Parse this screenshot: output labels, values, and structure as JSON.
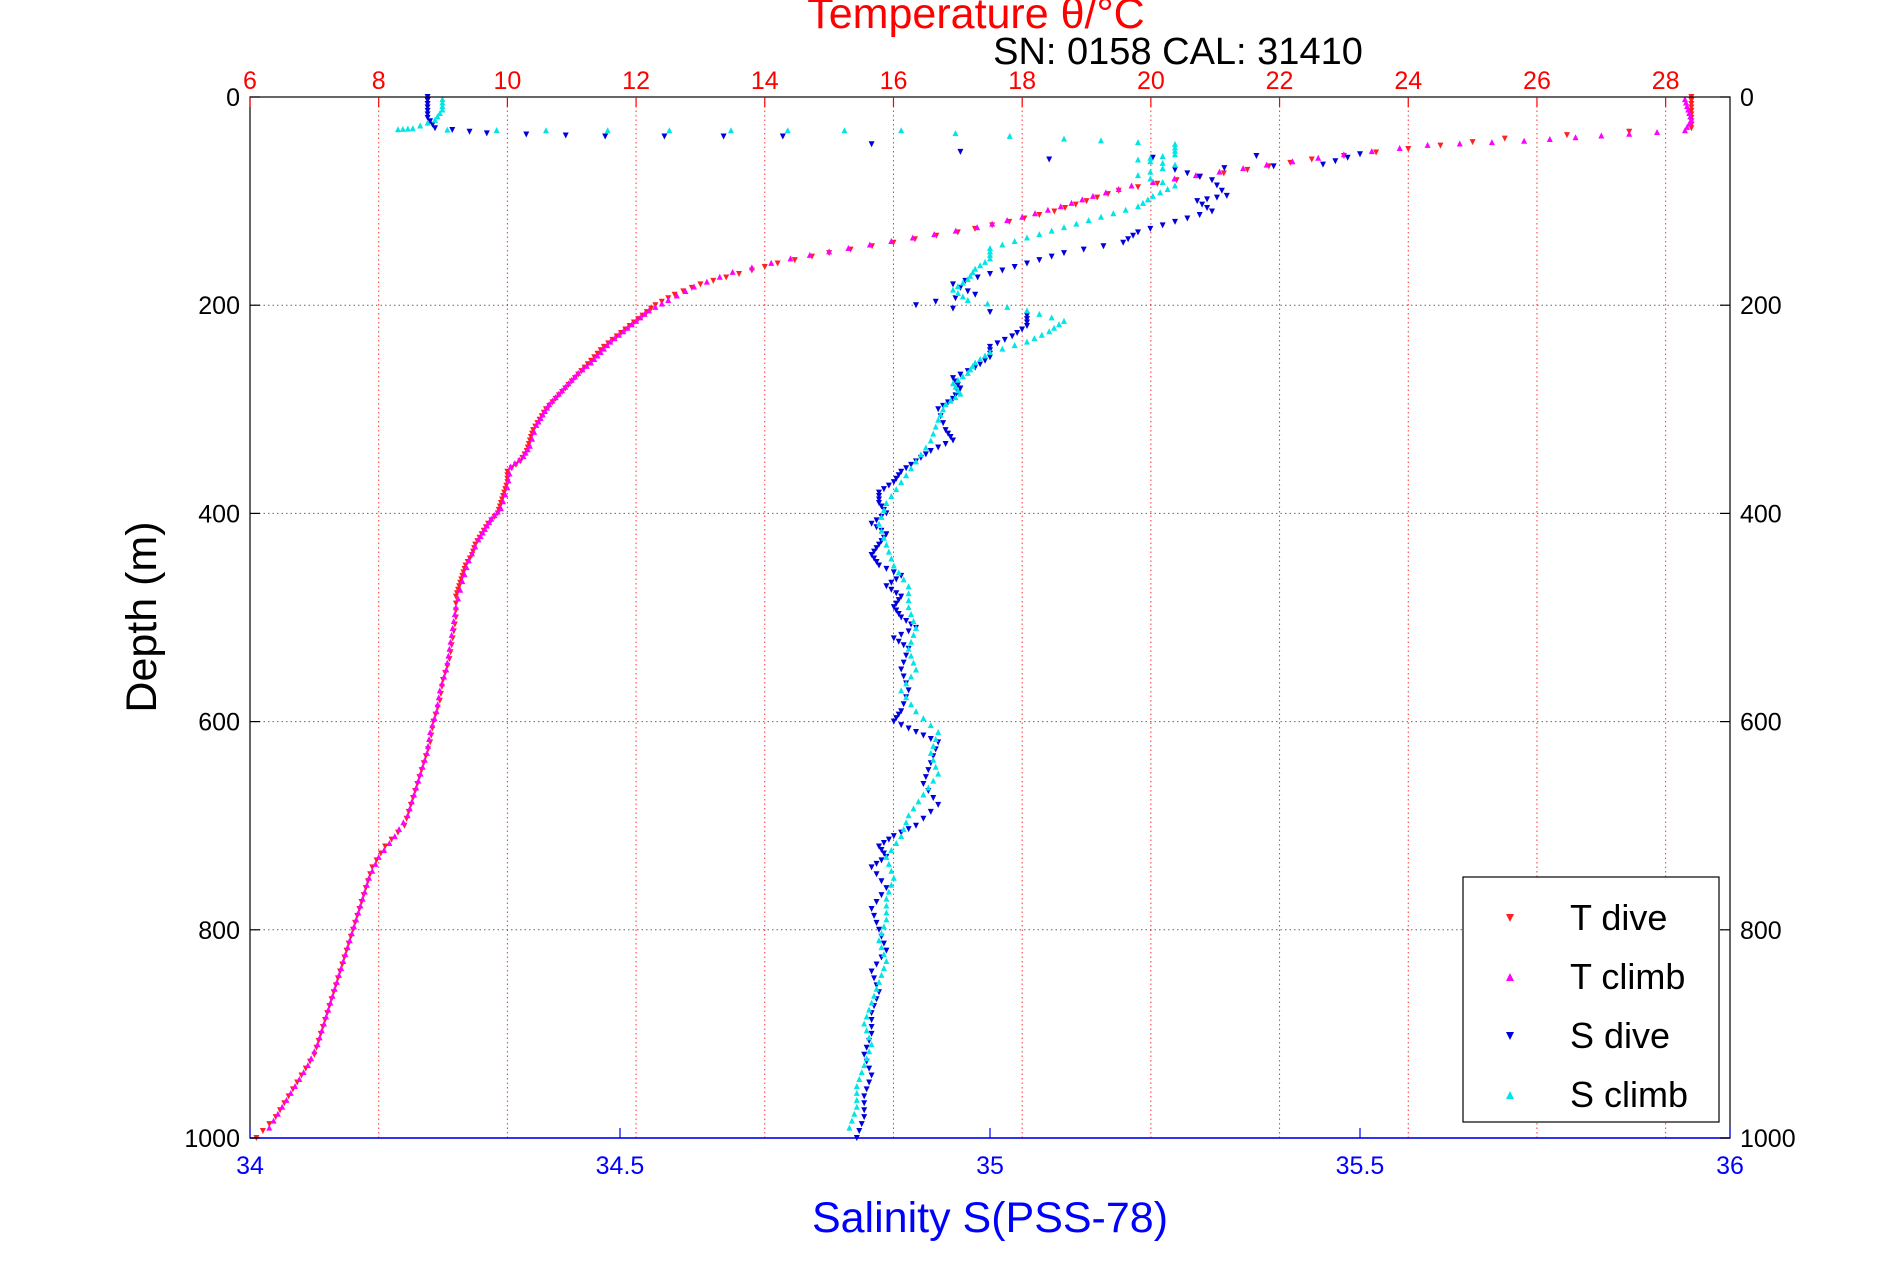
{
  "chart_data": {
    "type": "scatter",
    "title": "Temperature θ/°C",
    "subtitle": "SN: 0158  CAL: 31410",
    "xlabel": "Salinity S(PSS-78)",
    "ylabel": "Depth (m)",
    "x_bottom": {
      "lim": [
        34,
        36
      ],
      "ticks": [
        34,
        34.5,
        35,
        35.5,
        36
      ],
      "tick_labels": [
        "34",
        "34.5",
        "35",
        "35.5",
        "36"
      ]
    },
    "x_top": {
      "lim": [
        6,
        29
      ],
      "ticks": [
        6,
        8,
        10,
        12,
        14,
        16,
        18,
        20,
        22,
        24,
        26,
        28
      ],
      "tick_labels": [
        "6",
        "8",
        "10",
        "12",
        "14",
        "16",
        "18",
        "20",
        "22",
        "24",
        "26",
        "28"
      ]
    },
    "y": {
      "lim": [
        0,
        1000
      ],
      "reversed": true,
      "ticks": [
        0,
        200,
        400,
        600,
        800,
        1000
      ],
      "tick_labels": [
        "0",
        "200",
        "400",
        "600",
        "800",
        "1000"
      ]
    },
    "grid": true,
    "legend_position": "bottom-right",
    "colors": {
      "title": "#ff0000",
      "salinity_axis": "#0000ff",
      "grid_temperature": "#ff0000",
      "grid_depth": "#000000"
    },
    "series": [
      {
        "name": "T dive",
        "axis": "temperature",
        "marker": "down-triangle",
        "color": "#ff2020",
        "points": [
          [
            28.4,
            0
          ],
          [
            28.4,
            10
          ],
          [
            28.4,
            20
          ],
          [
            28.4,
            30
          ],
          [
            25.5,
            40
          ],
          [
            24.0,
            50
          ],
          [
            22.5,
            60
          ],
          [
            21.5,
            70
          ],
          [
            20.4,
            80
          ],
          [
            19.5,
            90
          ],
          [
            19.0,
            100
          ],
          [
            18.5,
            110
          ],
          [
            17.8,
            120
          ],
          [
            17.0,
            130
          ],
          [
            16.0,
            140
          ],
          [
            15.0,
            150
          ],
          [
            14.2,
            160
          ],
          [
            13.6,
            170
          ],
          [
            13.0,
            180
          ],
          [
            12.6,
            190
          ],
          [
            12.3,
            200
          ],
          [
            12.1,
            210
          ],
          [
            11.9,
            220
          ],
          [
            11.7,
            230
          ],
          [
            11.5,
            240
          ],
          [
            11.35,
            250
          ],
          [
            11.2,
            260
          ],
          [
            11.05,
            270
          ],
          [
            10.9,
            280
          ],
          [
            10.75,
            290
          ],
          [
            10.6,
            300
          ],
          [
            10.5,
            310
          ],
          [
            10.4,
            320
          ],
          [
            10.35,
            330
          ],
          [
            10.3,
            340
          ],
          [
            10.2,
            350
          ],
          [
            10.0,
            360
          ],
          [
            10.0,
            370
          ],
          [
            9.95,
            380
          ],
          [
            9.9,
            390
          ],
          [
            9.85,
            400
          ],
          [
            9.7,
            410
          ],
          [
            9.6,
            420
          ],
          [
            9.5,
            430
          ],
          [
            9.45,
            440
          ],
          [
            9.35,
            450
          ],
          [
            9.3,
            460
          ],
          [
            9.25,
            470
          ],
          [
            9.2,
            480
          ],
          [
            9.2,
            500
          ],
          [
            9.15,
            520
          ],
          [
            9.1,
            540
          ],
          [
            9.0,
            560
          ],
          [
            8.95,
            580
          ],
          [
            8.85,
            600
          ],
          [
            8.8,
            620
          ],
          [
            8.7,
            640
          ],
          [
            8.6,
            660
          ],
          [
            8.5,
            680
          ],
          [
            8.4,
            700
          ],
          [
            8.1,
            720
          ],
          [
            7.9,
            740
          ],
          [
            7.8,
            760
          ],
          [
            7.7,
            780
          ],
          [
            7.6,
            800
          ],
          [
            7.5,
            820
          ],
          [
            7.4,
            840
          ],
          [
            7.3,
            860
          ],
          [
            7.2,
            880
          ],
          [
            7.1,
            900
          ],
          [
            7.0,
            920
          ],
          [
            6.8,
            940
          ],
          [
            6.6,
            960
          ],
          [
            6.4,
            980
          ],
          [
            6.1,
            1000
          ]
        ]
      },
      {
        "name": "T climb",
        "axis": "temperature",
        "marker": "up-triangle",
        "color": "#ff00ff",
        "points": [
          [
            28.3,
            2
          ],
          [
            28.35,
            12
          ],
          [
            28.4,
            22
          ],
          [
            28.3,
            32
          ],
          [
            27.0,
            37
          ],
          [
            25.8,
            42
          ],
          [
            24.3,
            46
          ],
          [
            23.0,
            55
          ],
          [
            21.8,
            65
          ],
          [
            20.7,
            75
          ],
          [
            19.7,
            85
          ],
          [
            19.1,
            95
          ],
          [
            18.6,
            105
          ],
          [
            18.0,
            115
          ],
          [
            17.3,
            125
          ],
          [
            16.3,
            135
          ],
          [
            15.3,
            145
          ],
          [
            14.4,
            155
          ],
          [
            13.5,
            168
          ],
          [
            12.9,
            182
          ],
          [
            12.5,
            195
          ],
          [
            12.2,
            205
          ],
          [
            12.0,
            215
          ],
          [
            11.8,
            225
          ],
          [
            11.6,
            235
          ],
          [
            11.45,
            245
          ],
          [
            11.3,
            255
          ],
          [
            11.1,
            265
          ],
          [
            10.95,
            275
          ],
          [
            10.8,
            285
          ],
          [
            10.65,
            295
          ],
          [
            10.55,
            305
          ],
          [
            10.45,
            315
          ],
          [
            10.35,
            335
          ],
          [
            10.25,
            345
          ],
          [
            10.05,
            355
          ],
          [
            10.0,
            375
          ],
          [
            9.9,
            395
          ],
          [
            9.75,
            405
          ],
          [
            9.65,
            415
          ],
          [
            9.55,
            425
          ],
          [
            9.4,
            445
          ],
          [
            9.3,
            465
          ],
          [
            9.2,
            490
          ],
          [
            9.15,
            510
          ],
          [
            9.1,
            530
          ],
          [
            9.05,
            550
          ],
          [
            8.95,
            570
          ],
          [
            8.9,
            590
          ],
          [
            8.8,
            610
          ],
          [
            8.75,
            630
          ],
          [
            8.65,
            650
          ],
          [
            8.55,
            670
          ],
          [
            8.45,
            690
          ],
          [
            8.25,
            710
          ],
          [
            8.0,
            730
          ],
          [
            7.85,
            750
          ],
          [
            7.75,
            770
          ],
          [
            7.65,
            790
          ],
          [
            7.55,
            810
          ],
          [
            7.45,
            830
          ],
          [
            7.35,
            850
          ],
          [
            7.25,
            870
          ],
          [
            7.15,
            890
          ],
          [
            7.05,
            910
          ],
          [
            6.9,
            930
          ],
          [
            6.7,
            950
          ],
          [
            6.5,
            970
          ],
          [
            6.3,
            990
          ]
        ]
      },
      {
        "name": "S dive",
        "axis": "salinity",
        "marker": "down-triangle",
        "color": "#0000dd",
        "points": [
          [
            34.24,
            0
          ],
          [
            34.24,
            10
          ],
          [
            34.24,
            20
          ],
          [
            34.25,
            30
          ],
          [
            34.32,
            35
          ],
          [
            34.48,
            38
          ],
          [
            34.72,
            38
          ],
          [
            35.08,
            60
          ],
          [
            35.5,
            55
          ],
          [
            35.45,
            65
          ],
          [
            35.25,
            70
          ],
          [
            35.3,
            80
          ],
          [
            35.32,
            95
          ],
          [
            35.28,
            100
          ],
          [
            35.3,
            110
          ],
          [
            35.25,
            120
          ],
          [
            35.2,
            130
          ],
          [
            35.18,
            140
          ],
          [
            35.1,
            150
          ],
          [
            35.05,
            160
          ],
          [
            35.0,
            170
          ],
          [
            34.95,
            180
          ],
          [
            34.98,
            190
          ],
          [
            34.9,
            200
          ],
          [
            35.05,
            210
          ],
          [
            35.05,
            220
          ],
          [
            35.03,
            230
          ],
          [
            35.0,
            240
          ],
          [
            35.0,
            250
          ],
          [
            34.98,
            260
          ],
          [
            34.95,
            270
          ],
          [
            34.96,
            280
          ],
          [
            34.95,
            290
          ],
          [
            34.93,
            300
          ],
          [
            34.94,
            320
          ],
          [
            34.95,
            330
          ],
          [
            34.92,
            340
          ],
          [
            34.9,
            350
          ],
          [
            34.88,
            360
          ],
          [
            34.87,
            370
          ],
          [
            34.85,
            380
          ],
          [
            34.85,
            390
          ],
          [
            34.86,
            400
          ],
          [
            34.84,
            410
          ],
          [
            34.86,
            420
          ],
          [
            34.85,
            430
          ],
          [
            34.84,
            440
          ],
          [
            34.85,
            450
          ],
          [
            34.88,
            460
          ],
          [
            34.86,
            470
          ],
          [
            34.88,
            480
          ],
          [
            34.87,
            490
          ],
          [
            34.88,
            500
          ],
          [
            34.9,
            510
          ],
          [
            34.87,
            520
          ],
          [
            34.89,
            530
          ],
          [
            34.88,
            550
          ],
          [
            34.89,
            570
          ],
          [
            34.88,
            590
          ],
          [
            34.87,
            600
          ],
          [
            34.9,
            610
          ],
          [
            34.93,
            620
          ],
          [
            34.92,
            640
          ],
          [
            34.91,
            660
          ],
          [
            34.93,
            680
          ],
          [
            34.9,
            700
          ],
          [
            34.87,
            710
          ],
          [
            34.85,
            720
          ],
          [
            34.86,
            730
          ],
          [
            34.84,
            740
          ],
          [
            34.86,
            760
          ],
          [
            34.84,
            780
          ],
          [
            34.85,
            800
          ],
          [
            34.86,
            820
          ],
          [
            34.84,
            840
          ],
          [
            34.85,
            860
          ],
          [
            34.84,
            880
          ],
          [
            34.84,
            900
          ],
          [
            34.83,
            920
          ],
          [
            34.84,
            940
          ],
          [
            34.83,
            960
          ],
          [
            34.83,
            980
          ],
          [
            34.82,
            1000
          ]
        ]
      },
      {
        "name": "S climb",
        "axis": "salinity",
        "marker": "up-triangle",
        "color": "#00e5e5",
        "points": [
          [
            34.26,
            2
          ],
          [
            34.26,
            12
          ],
          [
            34.25,
            22
          ],
          [
            34.22,
            30
          ],
          [
            34.2,
            31
          ],
          [
            34.4,
            32
          ],
          [
            34.65,
            32
          ],
          [
            34.88,
            32
          ],
          [
            35.1,
            40
          ],
          [
            35.25,
            45
          ],
          [
            35.25,
            55
          ],
          [
            35.2,
            60
          ],
          [
            35.25,
            65
          ],
          [
            35.2,
            75
          ],
          [
            35.25,
            85
          ],
          [
            35.22,
            95
          ],
          [
            35.2,
            105
          ],
          [
            35.15,
            115
          ],
          [
            35.1,
            125
          ],
          [
            35.05,
            135
          ],
          [
            35.0,
            145
          ],
          [
            35.0,
            155
          ],
          [
            34.98,
            165
          ],
          [
            34.97,
            175
          ],
          [
            34.95,
            185
          ],
          [
            34.97,
            195
          ],
          [
            35.05,
            205
          ],
          [
            35.1,
            215
          ],
          [
            35.08,
            225
          ],
          [
            35.05,
            235
          ],
          [
            35.0,
            245
          ],
          [
            34.98,
            255
          ],
          [
            34.97,
            265
          ],
          [
            34.95,
            275
          ],
          [
            34.96,
            285
          ],
          [
            34.94,
            295
          ],
          [
            34.93,
            310
          ],
          [
            34.92,
            330
          ],
          [
            34.9,
            350
          ],
          [
            34.88,
            370
          ],
          [
            34.86,
            390
          ],
          [
            34.85,
            410
          ],
          [
            34.86,
            430
          ],
          [
            34.87,
            450
          ],
          [
            34.89,
            470
          ],
          [
            34.89,
            490
          ],
          [
            34.9,
            510
          ],
          [
            34.89,
            530
          ],
          [
            34.9,
            550
          ],
          [
            34.88,
            570
          ],
          [
            34.9,
            590
          ],
          [
            34.93,
            610
          ],
          [
            34.92,
            630
          ],
          [
            34.93,
            650
          ],
          [
            34.91,
            670
          ],
          [
            34.89,
            690
          ],
          [
            34.88,
            710
          ],
          [
            34.86,
            730
          ],
          [
            34.87,
            750
          ],
          [
            34.86,
            770
          ],
          [
            34.86,
            790
          ],
          [
            34.85,
            810
          ],
          [
            34.86,
            830
          ],
          [
            34.85,
            850
          ],
          [
            34.84,
            870
          ],
          [
            34.83,
            890
          ],
          [
            34.84,
            910
          ],
          [
            34.83,
            930
          ],
          [
            34.82,
            950
          ],
          [
            34.82,
            970
          ],
          [
            34.81,
            990
          ]
        ]
      }
    ]
  }
}
